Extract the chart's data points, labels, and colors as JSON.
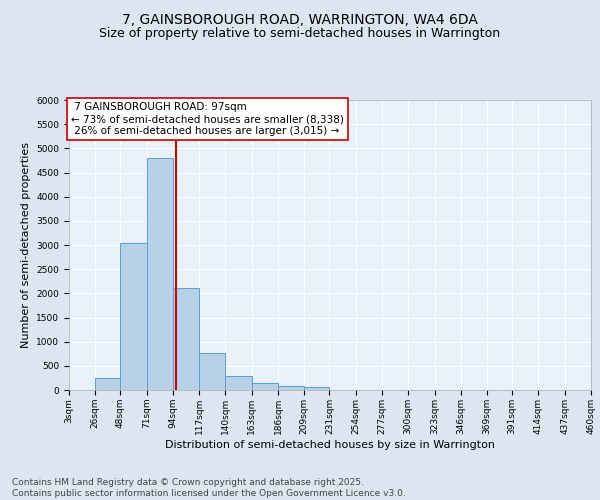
{
  "title_line1": "7, GAINSBOROUGH ROAD, WARRINGTON, WA4 6DA",
  "title_line2": "Size of property relative to semi-detached houses in Warrington",
  "xlabel": "Distribution of semi-detached houses by size in Warrington",
  "ylabel": "Number of semi-detached properties",
  "property_label": "7 GAINSBOROUGH ROAD: 97sqm",
  "pct_smaller": "73% of semi-detached houses are smaller (8,338)",
  "pct_larger": "26% of semi-detached houses are larger (3,015)",
  "property_size": 97,
  "bar_left_edges": [
    3,
    26,
    48,
    71,
    94,
    117,
    140,
    163,
    186,
    209,
    231,
    254,
    277,
    300,
    323,
    346,
    369,
    391,
    414,
    437
  ],
  "bar_widths": [
    23,
    22,
    23,
    23,
    23,
    23,
    23,
    23,
    23,
    22,
    23,
    23,
    23,
    23,
    23,
    23,
    23,
    23,
    23,
    23
  ],
  "bar_heights": [
    0,
    250,
    3050,
    4800,
    2120,
    775,
    300,
    140,
    80,
    55,
    0,
    0,
    0,
    0,
    0,
    0,
    0,
    0,
    0,
    0
  ],
  "bar_color": "#b8d0e8",
  "bar_edge_color": "#5a9fd4",
  "vline_x": 97,
  "vline_color": "#cc0000",
  "annotation_box_color": "#cc0000",
  "tick_labels": [
    "3sqm",
    "26sqm",
    "48sqm",
    "71sqm",
    "94sqm",
    "117sqm",
    "140sqm",
    "163sqm",
    "186sqm",
    "209sqm",
    "231sqm",
    "254sqm",
    "277sqm",
    "300sqm",
    "323sqm",
    "346sqm",
    "369sqm",
    "391sqm",
    "414sqm",
    "437sqm",
    "460sqm"
  ],
  "tick_positions": [
    3,
    26,
    48,
    71,
    94,
    117,
    140,
    163,
    186,
    209,
    231,
    254,
    277,
    300,
    323,
    346,
    369,
    391,
    414,
    437,
    460
  ],
  "ylim": [
    0,
    6000
  ],
  "xlim": [
    3,
    460
  ],
  "yticks": [
    0,
    500,
    1000,
    1500,
    2000,
    2500,
    3000,
    3500,
    4000,
    4500,
    5000,
    5500,
    6000
  ],
  "background_color": "#dce6f0",
  "plot_bg_color": "#e8f0f8",
  "footer_line1": "Contains HM Land Registry data © Crown copyright and database right 2025.",
  "footer_line2": "Contains public sector information licensed under the Open Government Licence v3.0.",
  "title_fontsize": 10,
  "subtitle_fontsize": 9,
  "axis_label_fontsize": 8,
  "tick_fontsize": 6.5,
  "annotation_fontsize": 7.5,
  "footer_fontsize": 6.5
}
